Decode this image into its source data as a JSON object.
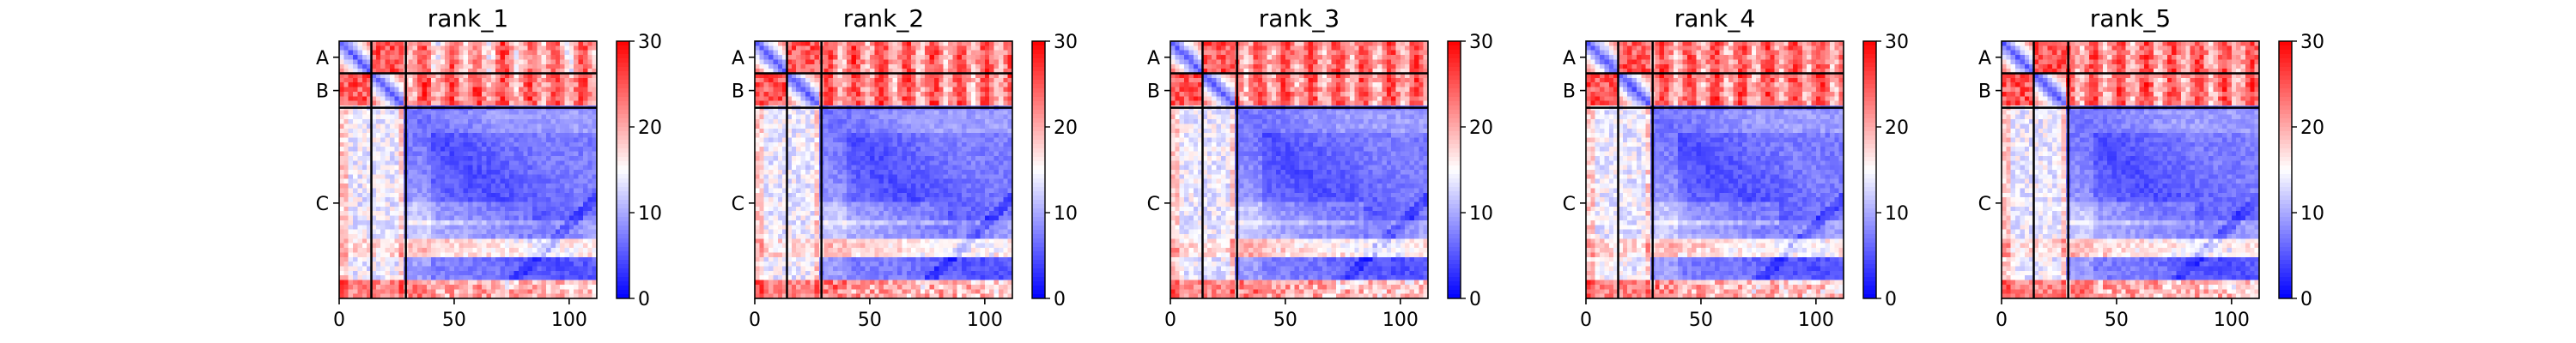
{
  "chart_data": {
    "type": "heatmap",
    "colormap": {
      "low": "#0000ff",
      "mid": "#ffffff",
      "high": "#ff0000"
    },
    "color_range": [
      0,
      30
    ],
    "colorbar_ticks": [
      "0",
      "10",
      "20",
      "30"
    ],
    "x_range": [
      0,
      112
    ],
    "x_ticks": [
      "0",
      "50",
      "100"
    ],
    "chains": [
      {
        "label": "A",
        "start": 0,
        "end": 14
      },
      {
        "label": "B",
        "start": 14,
        "end": 29
      },
      {
        "label": "C",
        "start": 29,
        "end": 112
      }
    ],
    "panels": [
      {
        "title": "rank_1"
      },
      {
        "title": "rank_2"
      },
      {
        "title": "rank_3"
      },
      {
        "title": "rank_4"
      },
      {
        "title": "rank_5"
      }
    ]
  }
}
